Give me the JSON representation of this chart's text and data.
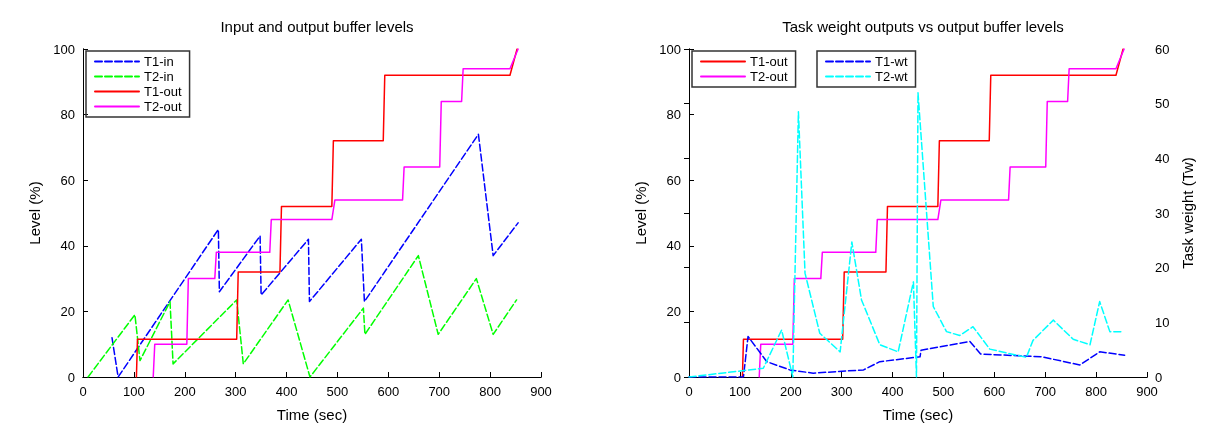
{
  "chart_data": [
    {
      "type": "line",
      "title": "Input and output buffer levels",
      "xlabel": "Time (sec)",
      "ylabel": "Level (%)",
      "xlim": [
        0,
        900
      ],
      "xticks": [
        0,
        100,
        200,
        300,
        400,
        500,
        600,
        700,
        800,
        900
      ],
      "ylim": [
        0,
        100
      ],
      "yticks": [
        0,
        20,
        40,
        60,
        80,
        100
      ],
      "grid": false,
      "legend": "top left",
      "marker": "none",
      "series": [
        {
          "name": "T1-in",
          "color": "#0000ff",
          "line_style": "dashed",
          "x": [
            57,
            69,
            266,
            268,
            348,
            350,
            443,
            445,
            547,
            553,
            777,
            806,
            855
          ],
          "values": [
            12,
            0,
            45,
            26,
            43,
            25,
            42,
            23,
            42,
            23,
            74,
            37,
            47
          ]
        },
        {
          "name": "T2-in",
          "color": "#00ff00",
          "line_style": "dashed",
          "x": [
            10,
            102,
            112,
            171,
            177,
            302,
            315,
            403,
            446,
            551,
            554,
            659,
            698,
            773,
            806,
            852
          ],
          "values": [
            0,
            19,
            5,
            23,
            4,
            23.5,
            4,
            23.5,
            0,
            21,
            13,
            37,
            13,
            30,
            13,
            23.5
          ]
        },
        {
          "name": "T1-out",
          "color": "#ff0000",
          "line_style": "solid",
          "x": [
            105,
            107,
            302,
            305,
            387,
            390,
            489,
            492,
            590,
            593,
            839,
            853
          ],
          "values": [
            0,
            11.5,
            11.5,
            32,
            32,
            52,
            52,
            72,
            72,
            92,
            92,
            100
          ]
        },
        {
          "name": "T2-out",
          "color": "#ff00ff",
          "line_style": "solid",
          "x": [
            138,
            141,
            204,
            207,
            259,
            262,
            367,
            370,
            489,
            495,
            628,
            631,
            701,
            704,
            744,
            747,
            839,
            855
          ],
          "values": [
            0,
            10,
            10,
            30,
            30,
            38,
            38,
            48,
            48,
            54,
            54,
            64,
            64,
            84,
            84,
            94,
            94,
            100
          ]
        }
      ]
    },
    {
      "type": "line",
      "title": "Task weight outputs vs output buffer levels",
      "xlabel": "Time (sec)",
      "ylabel": "Level (%)",
      "y2label": "Task weight (Tw)",
      "xlim": [
        0,
        900
      ],
      "xticks": [
        0,
        100,
        200,
        300,
        400,
        500,
        600,
        700,
        800,
        900
      ],
      "ylim": [
        0,
        100
      ],
      "yticks": [
        0,
        20,
        40,
        60,
        80,
        100
      ],
      "y2lim": [
        0,
        60
      ],
      "y2ticks": [
        0,
        10,
        20,
        30,
        40,
        50,
        60
      ],
      "grid": false,
      "legend": "top left",
      "marker": "none",
      "series": [
        {
          "name": "T1-out",
          "color": "#ff0000",
          "line_style": "solid",
          "x": [
            105,
            107,
            302,
            305,
            387,
            390,
            489,
            492,
            590,
            593,
            839,
            853
          ],
          "values": [
            0,
            11.5,
            11.5,
            32,
            32,
            52,
            52,
            72,
            72,
            92,
            92,
            100
          ]
        },
        {
          "name": "T2-out",
          "color": "#ff00ff",
          "line_style": "solid",
          "x": [
            138,
            141,
            204,
            207,
            259,
            262,
            367,
            370,
            489,
            495,
            628,
            631,
            701,
            704,
            744,
            747,
            839,
            855
          ],
          "values": [
            0,
            10,
            10,
            30,
            30,
            38,
            38,
            48,
            48,
            54,
            54,
            64,
            64,
            84,
            84,
            94,
            94,
            100
          ]
        },
        {
          "name": "T1-wt",
          "color": "#0000ff",
          "line_style": "dashed",
          "axis": "y2",
          "x": [
            0,
            107,
            116,
            153,
            198,
            244,
            343,
            375,
            454,
            456,
            552,
            573,
            693,
            768,
            807,
            856
          ],
          "values": [
            0,
            0,
            7.4,
            2.8,
            1.3,
            0.7,
            1.3,
            2.8,
            3.7,
            4.9,
            6.5,
            4.2,
            3.7,
            2.2,
            4.6,
            4
          ]
        },
        {
          "name": "T2-wt",
          "color": "#00ffff",
          "line_style": "dashed",
          "axis": "y2",
          "x": [
            0,
            146,
            182,
            204,
            215,
            228,
            257,
            297,
            320,
            339,
            375,
            411,
            441,
            447,
            450,
            480,
            506,
            532,
            558,
            591,
            663,
            676,
            716,
            755,
            788,
            807,
            827,
            850
          ],
          "values": [
            0,
            1.6,
            8.6,
            0,
            48.5,
            19,
            8,
            4.6,
            24.7,
            14.1,
            5.9,
            4.6,
            17.4,
            0,
            52,
            12.9,
            8.3,
            7.6,
            9.2,
            5.1,
            3.6,
            6.7,
            10.4,
            6.9,
            5.9,
            13.8,
            8.3,
            8.3
          ]
        }
      ]
    }
  ]
}
